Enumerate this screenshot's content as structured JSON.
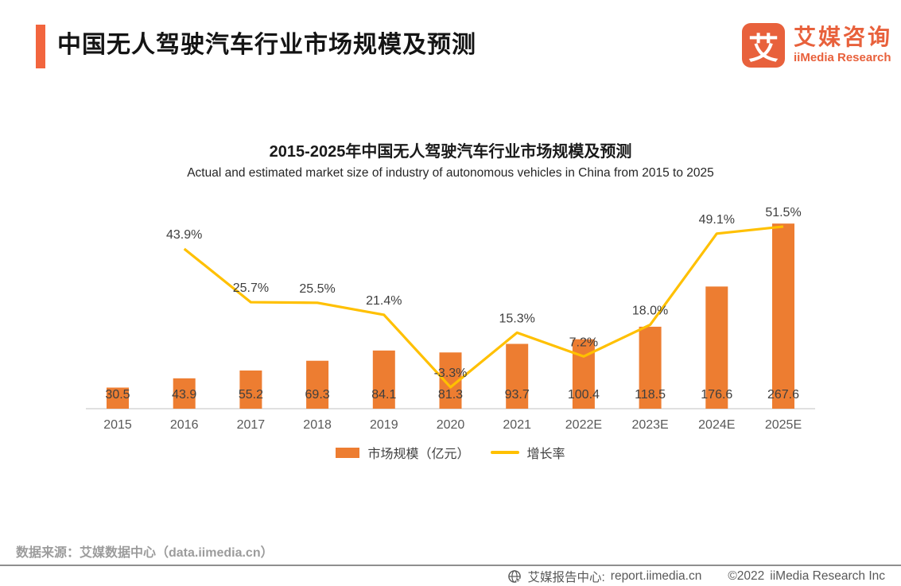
{
  "header": {
    "title": "中国无人驾驶汽车行业市场规模及预测",
    "accent_color": "#F2653E",
    "logo": {
      "glyph": "艾",
      "brand_cn": "艾媒咨询",
      "brand_en": "iiMedia Research",
      "color": "#E8613C"
    }
  },
  "chart_data": {
    "type": "combo-bar-line",
    "title": "2015-2025年中国无人驾驶汽车行业市场规模及预测",
    "subtitle": "Actual and estimated market size of industry of autonomous vehicles in China from 2015 to 2025",
    "categories": [
      "2015",
      "2016",
      "2017",
      "2018",
      "2019",
      "2020",
      "2021",
      "2022E",
      "2023E",
      "2024E",
      "2025E"
    ],
    "series": [
      {
        "name": "市场规模（亿元）",
        "type": "bar",
        "color": "#ED7D31",
        "values": [
          30.5,
          43.9,
          55.2,
          69.3,
          84.1,
          81.3,
          93.7,
          100.4,
          118.5,
          176.6,
          267.6
        ]
      },
      {
        "name": "增长率",
        "type": "line",
        "color": "#FFC000",
        "unit": "%",
        "values": [
          null,
          43.9,
          25.7,
          25.5,
          21.4,
          -3.3,
          15.3,
          7.2,
          18.0,
          49.1,
          51.5
        ]
      }
    ],
    "ylim_bar": [
      0,
      300
    ],
    "ylim_pct": [
      -10,
      60
    ],
    "grid": false,
    "y_axis_visible": false,
    "value_labels": true,
    "legend_position": "bottom"
  },
  "source": "数据来源：艾媒数据中心（data.iimedia.cn）",
  "footer": {
    "report_center_label": "艾媒报告中心:",
    "report_url": "report.iimedia.cn",
    "copyright": "©2022",
    "company": "iiMedia Research Inc"
  }
}
